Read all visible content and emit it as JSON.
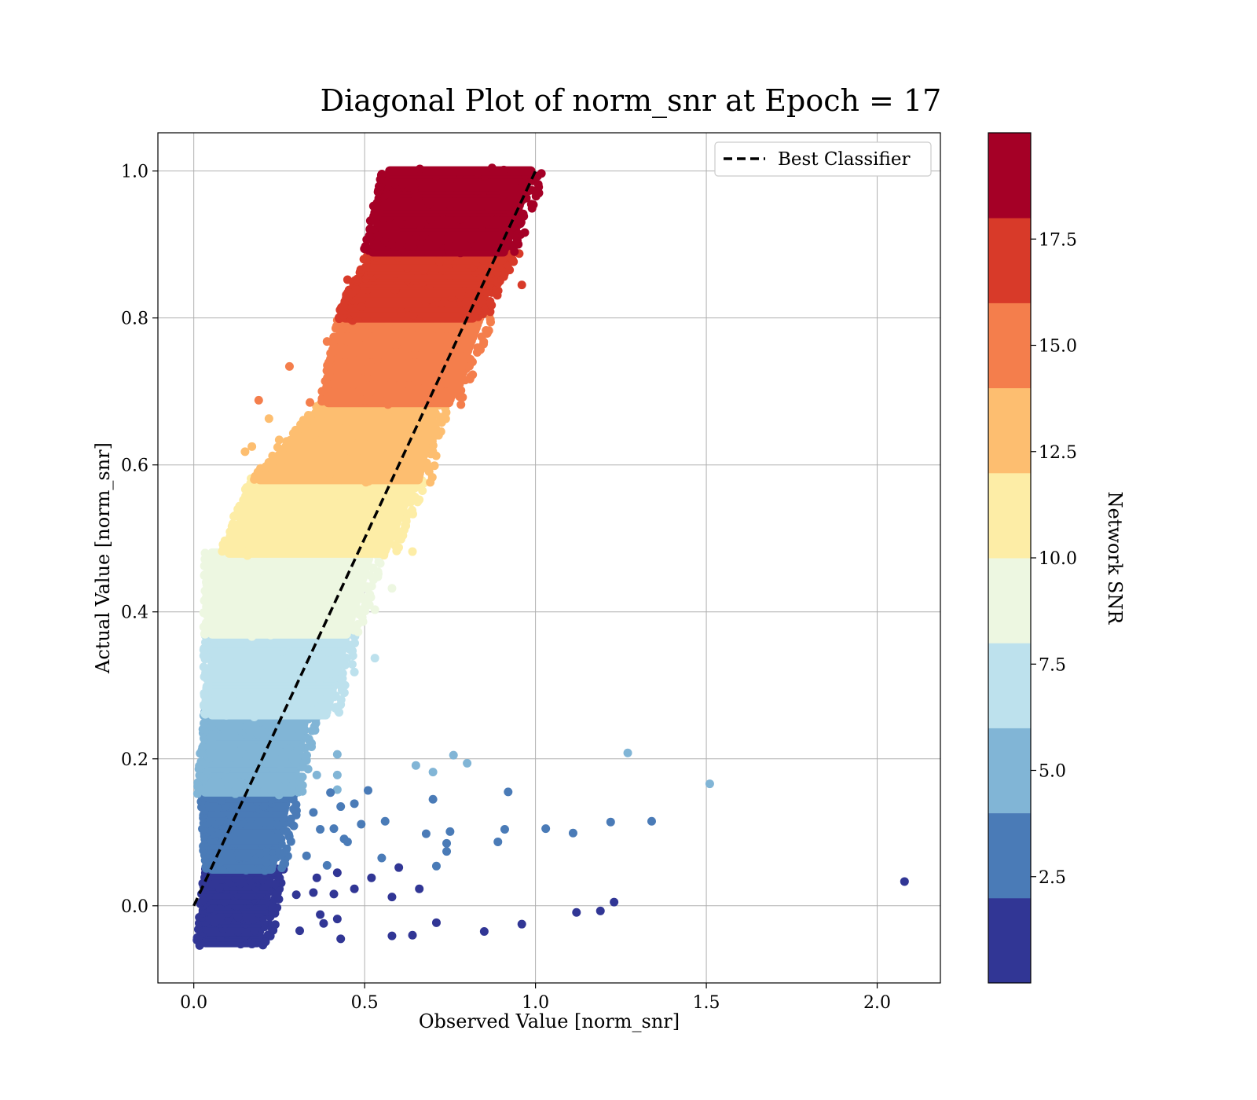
{
  "chart_data": {
    "type": "scatter",
    "title": "Diagonal Plot of norm_snr at Epoch = 17",
    "xlabel": "Observed Value [norm_snr]",
    "ylabel": "Actual Value [norm_snr]",
    "xlim": [
      -0.105,
      2.185
    ],
    "ylim": [
      -0.105,
      1.052
    ],
    "xticks": [
      {
        "value": 0.0,
        "label": "0.0"
      },
      {
        "value": 0.5,
        "label": "0.5"
      },
      {
        "value": 1.0,
        "label": "1.0"
      },
      {
        "value": 1.5,
        "label": "1.5"
      },
      {
        "value": 2.0,
        "label": "2.0"
      }
    ],
    "yticks": [
      {
        "value": 0.0,
        "label": "0.0"
      },
      {
        "value": 0.2,
        "label": "0.2"
      },
      {
        "value": 0.4,
        "label": "0.4"
      },
      {
        "value": 0.6,
        "label": "0.6"
      },
      {
        "value": 0.8,
        "label": "0.8"
      },
      {
        "value": 1.0,
        "label": "1.0"
      }
    ],
    "grid": true,
    "reference_line": {
      "name": "Best Classifier",
      "x": [
        0.0,
        1.0
      ],
      "y": [
        0.0,
        1.0
      ],
      "style": "dashed",
      "color": "#000000"
    },
    "legend": {
      "position": "top-right",
      "entries": [
        "Best Classifier"
      ]
    },
    "colorbar": {
      "label": "Network SNR",
      "range": [
        0.0,
        20.0
      ],
      "ticks": [
        {
          "value": 2.5,
          "label": "2.5"
        },
        {
          "value": 5.0,
          "label": "5.0"
        },
        {
          "value": 7.5,
          "label": "7.5"
        },
        {
          "value": 10.0,
          "label": "10.0"
        },
        {
          "value": 12.5,
          "label": "12.5"
        },
        {
          "value": 15.0,
          "label": "15.0"
        },
        {
          "value": 17.5,
          "label": "17.5"
        }
      ],
      "bands": [
        {
          "from": 0.0,
          "to": 2.0,
          "color": "#313695"
        },
        {
          "from": 2.0,
          "to": 4.0,
          "color": "#4a7bb7"
        },
        {
          "from": 4.0,
          "to": 6.0,
          "color": "#81b5d6"
        },
        {
          "from": 6.0,
          "to": 8.0,
          "color": "#bde1ed"
        },
        {
          "from": 8.0,
          "to": 10.0,
          "color": "#edf7e1"
        },
        {
          "from": 10.0,
          "to": 12.0,
          "color": "#fdeda6"
        },
        {
          "from": 12.0,
          "to": 14.0,
          "color": "#fdbe70"
        },
        {
          "from": 14.0,
          "to": 16.0,
          "color": "#f47e4c"
        },
        {
          "from": 16.0,
          "to": 18.0,
          "color": "#d83a29"
        },
        {
          "from": 18.0,
          "to": 20.0,
          "color": "#a50026"
        }
      ]
    },
    "point_clusters": [
      {
        "snr_band": 0,
        "y_range": [
          -0.05,
          0.05
        ],
        "x_range_at_ymin": [
          0.02,
          0.2
        ],
        "x_range_at_ymax": [
          0.04,
          0.24
        ]
      },
      {
        "snr_band": 1,
        "y_range": [
          0.05,
          0.155
        ],
        "x_range_at_ymin": [
          0.04,
          0.24
        ],
        "x_range_at_ymax": [
          0.03,
          0.29
        ]
      },
      {
        "snr_band": 2,
        "y_range": [
          0.155,
          0.26
        ],
        "x_range_at_ymin": [
          0.02,
          0.3
        ],
        "x_range_at_ymax": [
          0.04,
          0.34
        ]
      },
      {
        "snr_band": 3,
        "y_range": [
          0.26,
          0.37
        ],
        "x_range_at_ymin": [
          0.04,
          0.4
        ],
        "x_range_at_ymax": [
          0.04,
          0.46
        ]
      },
      {
        "snr_band": 4,
        "y_range": [
          0.37,
          0.48
        ],
        "x_range_at_ymin": [
          0.04,
          0.46
        ],
        "x_range_at_ymax": [
          0.04,
          0.53
        ]
      },
      {
        "snr_band": 5,
        "y_range": [
          0.48,
          0.58
        ],
        "x_range_at_ymin": [
          0.09,
          0.57
        ],
        "x_range_at_ymax": [
          0.17,
          0.66
        ]
      },
      {
        "snr_band": 6,
        "y_range": [
          0.58,
          0.685
        ],
        "x_range_at_ymin": [
          0.18,
          0.67
        ],
        "x_range_at_ymax": [
          0.38,
          0.72
        ]
      },
      {
        "snr_band": 7,
        "y_range": [
          0.685,
          0.8
        ],
        "x_range_at_ymin": [
          0.38,
          0.76
        ],
        "x_range_at_ymax": [
          0.43,
          0.85
        ]
      },
      {
        "snr_band": 8,
        "y_range": [
          0.8,
          0.89
        ],
        "x_range_at_ymin": [
          0.43,
          0.83
        ],
        "x_range_at_ymax": [
          0.52,
          0.93
        ]
      },
      {
        "snr_band": 9,
        "y_range": [
          0.89,
          1.0
        ],
        "x_range_at_ymin": [
          0.51,
          0.92
        ],
        "x_range_at_ymax": [
          0.56,
          1.0
        ]
      }
    ],
    "outliers": [
      {
        "x": 2.08,
        "y": 0.033,
        "snr_band": 0
      },
      {
        "x": 1.51,
        "y": 0.166,
        "snr_band": 2
      },
      {
        "x": 1.27,
        "y": 0.208,
        "snr_band": 2
      },
      {
        "x": 1.34,
        "y": 0.115,
        "snr_band": 1
      },
      {
        "x": 1.22,
        "y": 0.114,
        "snr_band": 1
      },
      {
        "x": 1.11,
        "y": 0.099,
        "snr_band": 1
      },
      {
        "x": 1.03,
        "y": 0.105,
        "snr_band": 1
      },
      {
        "x": 1.23,
        "y": 0.005,
        "snr_band": 0
      },
      {
        "x": 1.19,
        "y": -0.007,
        "snr_band": 0
      },
      {
        "x": 1.12,
        "y": -0.009,
        "snr_band": 0
      },
      {
        "x": 0.96,
        "y": -0.025,
        "snr_band": 0
      },
      {
        "x": 0.92,
        "y": 0.155,
        "snr_band": 1
      },
      {
        "x": 0.91,
        "y": 0.104,
        "snr_band": 1
      },
      {
        "x": 0.89,
        "y": 0.087,
        "snr_band": 1
      },
      {
        "x": 0.85,
        "y": -0.035,
        "snr_band": 0
      },
      {
        "x": 0.8,
        "y": 0.194,
        "snr_band": 2
      },
      {
        "x": 0.76,
        "y": 0.205,
        "snr_band": 2
      },
      {
        "x": 0.7,
        "y": 0.182,
        "snr_band": 2
      },
      {
        "x": 0.65,
        "y": 0.191,
        "snr_band": 2
      },
      {
        "x": 0.7,
        "y": 0.145,
        "snr_band": 1
      },
      {
        "x": 0.75,
        "y": 0.101,
        "snr_band": 1
      },
      {
        "x": 0.74,
        "y": 0.085,
        "snr_band": 1
      },
      {
        "x": 0.74,
        "y": 0.074,
        "snr_band": 1
      },
      {
        "x": 0.68,
        "y": 0.098,
        "snr_band": 1
      },
      {
        "x": 0.71,
        "y": 0.054,
        "snr_band": 1
      },
      {
        "x": 0.71,
        "y": -0.023,
        "snr_band": 0
      },
      {
        "x": 0.64,
        "y": -0.04,
        "snr_band": 0
      },
      {
        "x": 0.58,
        "y": -0.041,
        "snr_band": 0
      },
      {
        "x": 0.66,
        "y": 0.023,
        "snr_band": 0
      },
      {
        "x": 0.6,
        "y": 0.052,
        "snr_band": 0
      },
      {
        "x": 0.58,
        "y": 0.012,
        "snr_band": 0
      },
      {
        "x": 0.55,
        "y": 0.065,
        "snr_band": 1
      },
      {
        "x": 0.56,
        "y": 0.115,
        "snr_band": 1
      },
      {
        "x": 0.51,
        "y": 0.157,
        "snr_band": 1
      },
      {
        "x": 0.49,
        "y": 0.111,
        "snr_band": 1
      },
      {
        "x": 0.52,
        "y": 0.038,
        "snr_band": 0
      },
      {
        "x": 0.47,
        "y": 0.023,
        "snr_band": 0
      },
      {
        "x": 0.43,
        "y": -0.045,
        "snr_band": 0
      },
      {
        "x": 0.42,
        "y": -0.018,
        "snr_band": 0
      },
      {
        "x": 0.37,
        "y": -0.012,
        "snr_band": 0
      },
      {
        "x": 0.38,
        "y": -0.024,
        "snr_band": 0
      },
      {
        "x": 0.31,
        "y": -0.034,
        "snr_band": 0
      },
      {
        "x": 0.42,
        "y": 0.206,
        "snr_band": 2
      },
      {
        "x": 0.42,
        "y": 0.178,
        "snr_band": 2
      },
      {
        "x": 0.36,
        "y": 0.178,
        "snr_band": 2
      },
      {
        "x": 0.42,
        "y": 0.158,
        "snr_band": 2
      },
      {
        "x": 0.47,
        "y": 0.139,
        "snr_band": 1
      },
      {
        "x": 0.43,
        "y": 0.135,
        "snr_band": 1
      },
      {
        "x": 0.4,
        "y": 0.154,
        "snr_band": 1
      },
      {
        "x": 0.44,
        "y": 0.091,
        "snr_band": 1
      },
      {
        "x": 0.45,
        "y": 0.087,
        "snr_band": 1
      },
      {
        "x": 0.41,
        "y": 0.105,
        "snr_band": 1
      },
      {
        "x": 0.37,
        "y": 0.104,
        "snr_band": 1
      },
      {
        "x": 0.35,
        "y": 0.127,
        "snr_band": 1
      },
      {
        "x": 0.33,
        "y": 0.068,
        "snr_band": 1
      },
      {
        "x": 0.39,
        "y": 0.055,
        "snr_band": 1
      },
      {
        "x": 0.36,
        "y": 0.038,
        "snr_band": 0
      },
      {
        "x": 0.42,
        "y": 0.045,
        "snr_band": 0
      },
      {
        "x": 0.41,
        "y": 0.016,
        "snr_band": 0
      },
      {
        "x": 0.35,
        "y": 0.018,
        "snr_band": 0
      },
      {
        "x": 0.3,
        "y": 0.015,
        "snr_band": 0
      },
      {
        "x": 0.23,
        "y": -0.003,
        "snr_band": 0
      },
      {
        "x": 0.21,
        "y": -0.049,
        "snr_band": 0
      },
      {
        "x": 0.17,
        "y": -0.052,
        "snr_band": 0
      },
      {
        "x": 0.36,
        "y": 0.266,
        "snr_band": 3
      },
      {
        "x": 0.53,
        "y": 0.337,
        "snr_band": 3
      },
      {
        "x": 0.47,
        "y": 0.318,
        "snr_band": 3
      },
      {
        "x": 0.58,
        "y": 0.432,
        "snr_band": 4
      },
      {
        "x": 0.53,
        "y": 0.403,
        "snr_band": 4
      },
      {
        "x": 0.64,
        "y": 0.482,
        "snr_band": 5
      },
      {
        "x": 0.19,
        "y": 0.688,
        "snr_band": 7
      },
      {
        "x": 0.28,
        "y": 0.734,
        "snr_band": 7
      },
      {
        "x": 0.34,
        "y": 0.685,
        "snr_band": 7
      },
      {
        "x": 0.39,
        "y": 0.768,
        "snr_band": 7
      },
      {
        "x": 0.45,
        "y": 0.852,
        "snr_band": 8
      },
      {
        "x": 0.49,
        "y": 0.815,
        "snr_band": 8
      },
      {
        "x": 0.56,
        "y": 0.905,
        "snr_band": 9
      },
      {
        "x": 0.58,
        "y": 0.9,
        "snr_band": 9
      },
      {
        "x": 0.65,
        "y": 0.965,
        "snr_band": 9
      },
      {
        "x": 1.01,
        "y": 0.97,
        "snr_band": 9
      },
      {
        "x": 0.96,
        "y": 0.845,
        "snr_band": 8
      },
      {
        "x": 0.17,
        "y": 0.625,
        "snr_band": 6
      },
      {
        "x": 0.15,
        "y": 0.618,
        "snr_band": 6
      },
      {
        "x": 0.22,
        "y": 0.663,
        "snr_band": 6
      },
      {
        "x": 0.25,
        "y": 0.634,
        "snr_band": 6
      }
    ]
  }
}
